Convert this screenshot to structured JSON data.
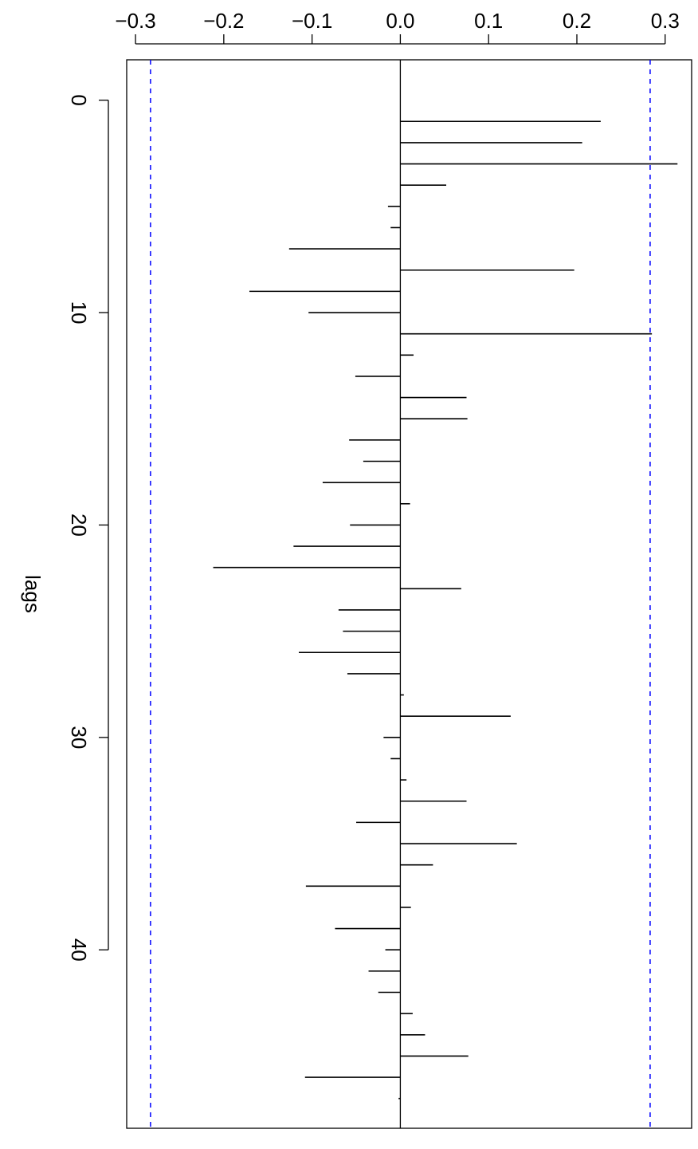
{
  "chart_data": {
    "type": "bar",
    "orientation": "rotated-90",
    "xlabel": "lags",
    "ylabel": "",
    "x_ticks": [
      0,
      10,
      20,
      30,
      40
    ],
    "x_tick_labels": [
      "0",
      "10",
      "20",
      "30",
      "40"
    ],
    "y_ticks": [
      -0.3,
      -0.2,
      -0.1,
      0.0,
      0.1,
      0.2,
      0.3
    ],
    "y_tick_labels": [
      "−0.3",
      "−0.2",
      "−0.1",
      "0.0",
      "0.1",
      "0.2",
      "0.3"
    ],
    "ylim": [
      -0.31,
      0.33
    ],
    "xlim": [
      -1.9,
      48.4
    ],
    "confidence_bound": 0.283,
    "confidence_color": "#0000ff",
    "line_color": "#000000",
    "lags": [
      1,
      2,
      3,
      4,
      5,
      6,
      7,
      8,
      9,
      10,
      11,
      12,
      13,
      14,
      15,
      16,
      17,
      18,
      19,
      20,
      21,
      22,
      23,
      24,
      25,
      26,
      27,
      28,
      29,
      30,
      31,
      32,
      33,
      34,
      35,
      36,
      37,
      38,
      39,
      40,
      41,
      42,
      43,
      44,
      45,
      46,
      47
    ],
    "values": [
      0.227,
      0.206,
      0.314,
      0.052,
      -0.014,
      -0.011,
      -0.126,
      0.197,
      -0.171,
      -0.104,
      0.285,
      0.015,
      -0.051,
      0.075,
      0.076,
      -0.058,
      -0.042,
      -0.088,
      0.011,
      -0.057,
      -0.121,
      -0.212,
      0.069,
      -0.07,
      -0.065,
      -0.115,
      -0.06,
      0.004,
      0.125,
      -0.019,
      -0.011,
      0.007,
      0.075,
      -0.05,
      0.132,
      0.037,
      -0.107,
      0.012,
      -0.074,
      -0.017,
      -0.036,
      -0.025,
      0.014,
      0.028,
      0.077,
      -0.108,
      -0.002
    ]
  }
}
